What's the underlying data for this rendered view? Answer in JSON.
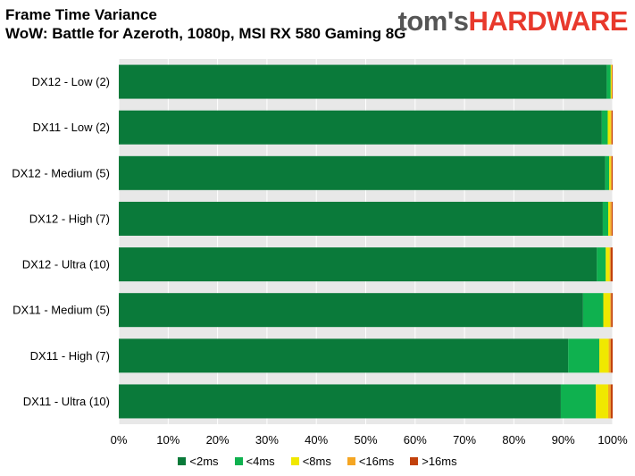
{
  "title_line1": "Frame Time Variance",
  "title_line2": "WoW: Battle for Azeroth, 1080p, MSI RX 580 Gaming 8G",
  "logo": {
    "part1": "tom's",
    "part2": "HARDWARE",
    "color1": "#555555",
    "color2": "#e8392c"
  },
  "chart_data": {
    "type": "bar",
    "orientation": "horizontal",
    "stacked": true,
    "percent_stacked": true,
    "categories": [
      "DX12 - Low (2)",
      "DX11 - Low (2)",
      "DX12 - Medium (5)",
      "DX12 - High (7)",
      "DX12 - Ultra (10)",
      "DX11 - Medium (5)",
      "DX11 - High (7)",
      "DX11 - Ultra (10)"
    ],
    "series": [
      {
        "name": "<2ms",
        "color": "#0a7a3a",
        "values": [
          98.8,
          97.8,
          98.5,
          98.0,
          96.8,
          94.0,
          91.0,
          89.5
        ]
      },
      {
        "name": "<4ms",
        "color": "#0fb14f",
        "values": [
          0.8,
          1.2,
          0.8,
          1.1,
          1.8,
          4.1,
          6.3,
          7.1
        ]
      },
      {
        "name": "<8ms",
        "color": "#f0e800",
        "values": [
          0.2,
          0.6,
          0.3,
          0.4,
          0.8,
          1.4,
          1.9,
          2.5
        ]
      },
      {
        "name": "<16ms",
        "color": "#f5a623",
        "values": [
          0.1,
          0.2,
          0.2,
          0.3,
          0.2,
          0.2,
          0.4,
          0.5
        ]
      },
      {
        "name": ">16ms",
        "color": "#c2410c",
        "values": [
          0.1,
          0.2,
          0.2,
          0.2,
          0.4,
          0.3,
          0.4,
          0.4
        ]
      }
    ],
    "xlim": [
      0,
      100
    ],
    "x_ticks": [
      "0%",
      "10%",
      "20%",
      "30%",
      "40%",
      "50%",
      "60%",
      "70%",
      "80%",
      "90%",
      "100%"
    ],
    "legend_position": "bottom",
    "grid": true,
    "background": "#ffffff"
  }
}
